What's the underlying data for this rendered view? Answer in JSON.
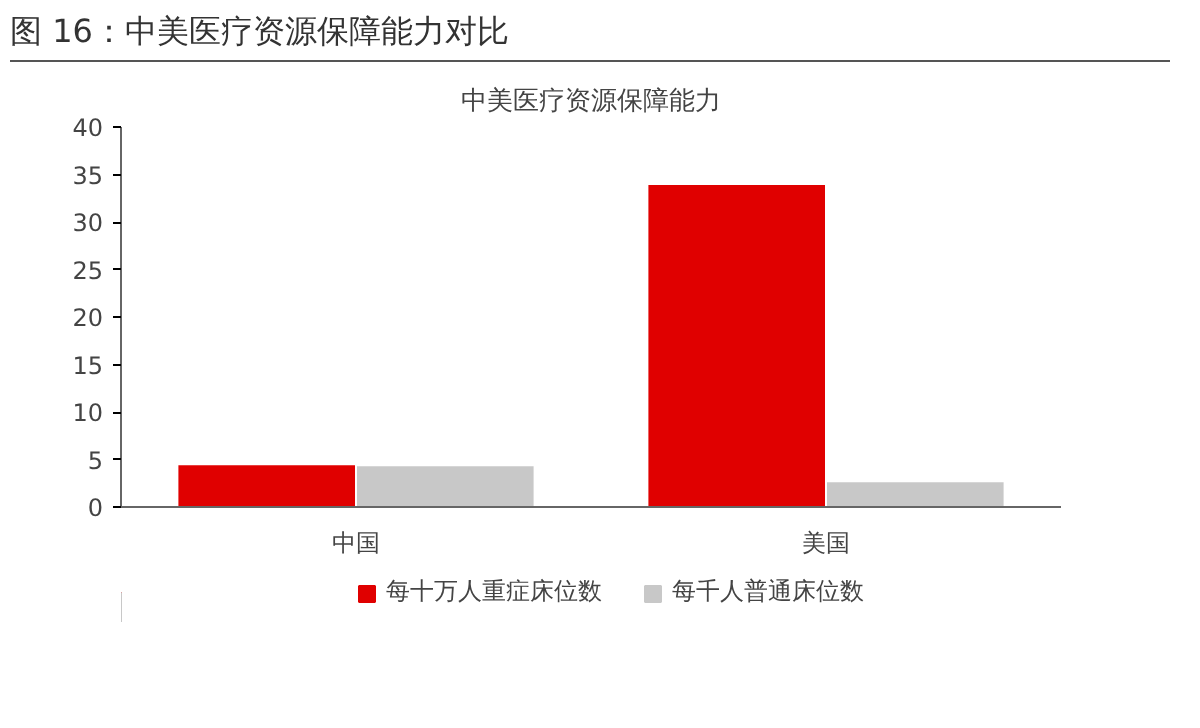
{
  "chart_data": {
    "type": "bar",
    "title": "图 16：中美医疗资源保障能力对比",
    "subtitle": "中美医疗资源保障能力",
    "categories": [
      "中国",
      "美国"
    ],
    "series": [
      {
        "name": "每十万人重症床位数",
        "color": "#e00000",
        "values": [
          4.5,
          34
        ]
      },
      {
        "name": "每千人普通床位数",
        "color": "#c8c8c8",
        "values": [
          4.4,
          2.7
        ]
      }
    ],
    "ylim": [
      0,
      40
    ],
    "yticks": [
      0,
      5,
      10,
      15,
      20,
      25,
      30,
      35,
      40
    ],
    "grid": false,
    "legend": "bottom"
  }
}
